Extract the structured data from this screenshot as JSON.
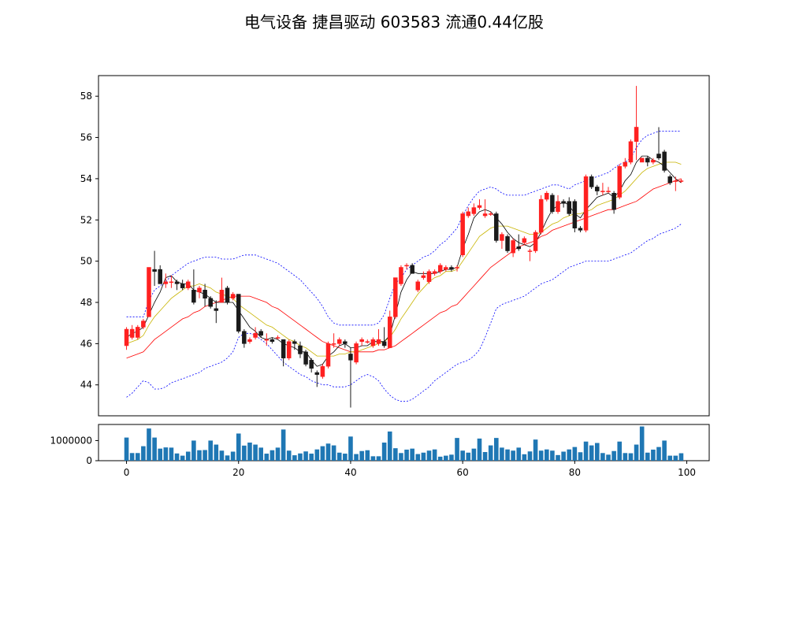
{
  "chart_data": {
    "type": "candlestick",
    "title": "电气设备 捷昌驱动 603583 流通0.44亿股",
    "price_ylim": [
      42.5,
      59.0
    ],
    "price_yticks": [
      "44",
      "46",
      "48",
      "50",
      "52",
      "54",
      "56",
      "58"
    ],
    "volume_ylim": [
      0,
      1800000
    ],
    "volume_yticks": [
      "0",
      "1000000"
    ],
    "xlim": [
      -5,
      104
    ],
    "xticks": [
      "0",
      "20",
      "40",
      "60",
      "80",
      "100"
    ],
    "colors": {
      "up": "#ff2020",
      "down": "#1a1a1a",
      "ma_short": "#000000",
      "ma_mid": "#c8b400",
      "ma_long": "#ff0000",
      "band": "#0000ff",
      "volume": "#1f77b4"
    },
    "ohlc": [
      [
        45.9,
        46.7,
        46.8,
        45.7
      ],
      [
        46.3,
        46.7,
        46.9,
        46.2
      ],
      [
        46.3,
        46.8,
        46.9,
        46.2
      ],
      [
        46.8,
        47.1,
        47.2,
        46.7
      ],
      [
        47.3,
        49.7,
        49.7,
        47.3
      ],
      [
        49.6,
        49.5,
        50.5,
        48.8
      ],
      [
        49.6,
        48.9,
        49.8,
        48.9
      ],
      [
        48.9,
        49.0,
        49.4,
        48.7
      ],
      [
        49.0,
        49.0,
        49.3,
        48.7
      ],
      [
        49.0,
        48.9,
        49.1,
        48.6
      ],
      [
        48.9,
        48.7,
        49.1,
        48.6
      ],
      [
        48.7,
        49.0,
        49.1,
        48.6
      ],
      [
        48.6,
        48.0,
        49.6,
        47.9
      ],
      [
        48.5,
        48.7,
        48.8,
        48.2
      ],
      [
        48.6,
        48.2,
        48.9,
        47.8
      ],
      [
        48.2,
        47.8,
        48.3,
        47.7
      ],
      [
        47.7,
        47.6,
        48.1,
        47.0
      ],
      [
        48.0,
        48.6,
        49.2,
        48.0
      ],
      [
        48.7,
        48.0,
        48.8,
        47.9
      ],
      [
        48.2,
        48.4,
        48.5,
        48.1
      ],
      [
        48.4,
        46.6,
        48.4,
        46.5
      ],
      [
        46.6,
        46.0,
        46.7,
        45.8
      ],
      [
        46.1,
        46.2,
        46.3,
        46.0
      ],
      [
        46.3,
        46.5,
        46.8,
        46.2
      ],
      [
        46.6,
        46.4,
        46.7,
        46.3
      ],
      [
        46.2,
        46.2,
        46.5,
        45.9
      ],
      [
        46.2,
        46.1,
        46.3,
        46.0
      ],
      [
        46.3,
        46.3,
        46.4,
        46.2
      ],
      [
        46.2,
        45.3,
        46.2,
        44.9
      ],
      [
        45.3,
        46.1,
        46.2,
        45.2
      ],
      [
        46.1,
        46.0,
        46.2,
        45.7
      ],
      [
        45.9,
        45.5,
        46.1,
        45.3
      ],
      [
        45.6,
        45.0,
        45.7,
        44.9
      ],
      [
        45.2,
        44.8,
        45.3,
        44.6
      ],
      [
        44.6,
        44.5,
        44.7,
        43.9
      ],
      [
        44.4,
        44.9,
        45.0,
        44.3
      ],
      [
        44.9,
        46.0,
        46.1,
        44.8
      ],
      [
        46.0,
        46.0,
        46.5,
        45.8
      ],
      [
        46.0,
        46.2,
        46.3,
        45.9
      ],
      [
        46.1,
        46.0,
        46.2,
        45.8
      ],
      [
        45.5,
        45.2,
        45.8,
        42.9
      ],
      [
        45.1,
        46.0,
        46.1,
        45.0
      ],
      [
        46.1,
        46.2,
        46.3,
        45.9
      ],
      [
        46.1,
        46.1,
        46.2,
        46.0
      ],
      [
        45.9,
        46.2,
        46.3,
        45.8
      ],
      [
        46.0,
        46.2,
        46.7,
        45.9
      ],
      [
        46.1,
        45.9,
        46.8,
        45.8
      ],
      [
        45.8,
        47.3,
        47.6,
        45.8
      ],
      [
        47.3,
        49.2,
        49.2,
        47.2
      ],
      [
        48.9,
        49.7,
        49.8,
        48.8
      ],
      [
        49.8,
        49.8,
        49.9,
        49.6
      ],
      [
        49.8,
        49.4,
        49.9,
        49.4
      ],
      [
        48.6,
        49.0,
        49.1,
        48.5
      ],
      [
        49.2,
        49.3,
        49.5,
        49.1
      ],
      [
        49.0,
        49.5,
        49.6,
        48.9
      ],
      [
        49.4,
        49.5,
        49.6,
        49.3
      ],
      [
        49.5,
        49.8,
        49.9,
        49.4
      ],
      [
        49.6,
        49.7,
        49.8,
        49.5
      ],
      [
        49.7,
        49.6,
        49.8,
        49.5
      ],
      [
        49.7,
        49.7,
        49.8,
        49.5
      ],
      [
        50.3,
        52.3,
        52.4,
        50.2
      ],
      [
        52.2,
        52.4,
        52.6,
        52.1
      ],
      [
        52.3,
        52.6,
        52.8,
        52.2
      ],
      [
        52.6,
        52.7,
        53.0,
        52.5
      ],
      [
        52.2,
        52.3,
        53.0,
        52.1
      ],
      [
        52.3,
        52.3,
        52.4,
        52.2
      ],
      [
        52.3,
        51.0,
        52.4,
        50.9
      ],
      [
        51.0,
        51.3,
        51.4,
        50.6
      ],
      [
        51.2,
        50.5,
        51.3,
        50.4
      ],
      [
        50.4,
        51.0,
        51.1,
        50.2
      ],
      [
        50.7,
        50.6,
        51.3,
        50.5
      ],
      [
        50.9,
        51.1,
        51.2,
        50.8
      ],
      [
        50.5,
        50.5,
        50.6,
        50.0
      ],
      [
        50.5,
        51.4,
        51.5,
        50.4
      ],
      [
        51.4,
        53.0,
        53.2,
        51.3
      ],
      [
        53.0,
        53.3,
        53.4,
        52.9
      ],
      [
        53.2,
        52.4,
        53.3,
        52.3
      ],
      [
        52.4,
        52.9,
        53.2,
        52.3
      ],
      [
        52.9,
        52.8,
        53.0,
        52.6
      ],
      [
        52.9,
        52.3,
        53.1,
        52.2
      ],
      [
        52.9,
        51.6,
        53.0,
        51.4
      ],
      [
        51.6,
        51.5,
        51.7,
        51.4
      ],
      [
        51.5,
        54.1,
        54.2,
        51.4
      ],
      [
        54.1,
        53.6,
        54.2,
        53.5
      ],
      [
        53.6,
        53.4,
        53.7,
        53.2
      ],
      [
        53.4,
        53.4,
        53.8,
        53.2
      ],
      [
        53.4,
        53.4,
        53.6,
        53.3
      ],
      [
        53.3,
        52.5,
        53.4,
        52.3
      ],
      [
        53.1,
        54.6,
        54.7,
        53.0
      ],
      [
        54.6,
        54.8,
        55.0,
        54.5
      ],
      [
        54.8,
        55.8,
        55.9,
        54.7
      ],
      [
        55.8,
        56.5,
        58.5,
        54.9
      ],
      [
        54.8,
        55.0,
        55.0,
        54.8
      ],
      [
        55.0,
        54.8,
        55.1,
        54.6
      ],
      [
        54.8,
        54.9,
        55.0,
        54.7
      ],
      [
        55.2,
        55.0,
        56.5,
        54.9
      ],
      [
        55.3,
        54.4,
        55.4,
        54.3
      ],
      [
        54.1,
        53.8,
        54.2,
        53.7
      ],
      [
        53.9,
        53.9,
        54.1,
        53.4
      ],
      [
        53.9,
        53.9,
        54.0,
        53.8
      ]
    ],
    "ma_short": [
      46.3,
      46.5,
      46.6,
      46.8,
      47.4,
      48.0,
      48.5,
      49.2,
      49.3,
      49.0,
      48.9,
      48.9,
      48.6,
      48.5,
      48.4,
      48.2,
      48.0,
      48.0,
      48.0,
      48.0,
      47.6,
      47.2,
      46.8,
      46.6,
      46.3,
      46.2,
      46.3,
      46.2,
      46.0,
      45.9,
      45.8,
      45.6,
      45.6,
      45.2,
      44.9,
      45.0,
      45.4,
      45.6,
      45.9,
      46.0,
      45.8,
      45.8,
      45.9,
      45.9,
      46.1,
      46.1,
      46.1,
      46.4,
      47.4,
      48.5,
      49.1,
      49.5,
      49.4,
      49.4,
      49.4,
      49.4,
      49.5,
      49.6,
      49.6,
      49.7,
      50.6,
      51.3,
      52.1,
      52.4,
      52.5,
      52.4,
      52.1,
      51.8,
      51.4,
      51.1,
      50.9,
      50.8,
      50.7,
      50.9,
      51.4,
      52.0,
      52.5,
      52.7,
      52.9,
      52.7,
      52.3,
      52.1,
      52.5,
      52.8,
      53.1,
      53.2,
      53.3,
      53.1,
      53.4,
      53.9,
      54.2,
      54.8,
      55.1,
      55.1,
      54.9,
      54.8,
      54.6,
      54.3,
      54.0,
      53.8
    ],
    "ma_mid": [
      46.0,
      46.1,
      46.2,
      46.4,
      46.9,
      47.3,
      47.6,
      47.9,
      48.2,
      48.4,
      48.6,
      48.8,
      48.8,
      48.9,
      48.8,
      48.7,
      48.5,
      48.4,
      48.3,
      48.2,
      47.9,
      47.7,
      47.5,
      47.3,
      47.1,
      46.9,
      46.8,
      46.6,
      46.4,
      46.2,
      46.1,
      45.9,
      45.8,
      45.6,
      45.4,
      45.4,
      45.4,
      45.4,
      45.5,
      45.5,
      45.6,
      45.6,
      45.7,
      45.8,
      45.9,
      46.0,
      46.1,
      46.3,
      46.7,
      47.2,
      47.6,
      48.0,
      48.4,
      48.7,
      49.0,
      49.2,
      49.3,
      49.5,
      49.5,
      49.6,
      50.0,
      50.4,
      50.8,
      51.2,
      51.4,
      51.6,
      51.7,
      51.7,
      51.7,
      51.6,
      51.5,
      51.4,
      51.3,
      51.3,
      51.4,
      51.6,
      51.8,
      51.9,
      52.1,
      52.2,
      52.3,
      52.3,
      52.4,
      52.5,
      52.7,
      52.8,
      52.9,
      53.0,
      53.2,
      53.4,
      53.7,
      54.0,
      54.3,
      54.5,
      54.6,
      54.7,
      54.8,
      54.8,
      54.8,
      54.7
    ],
    "ma_long": [
      45.3,
      45.4,
      45.5,
      45.6,
      45.9,
      46.2,
      46.4,
      46.6,
      46.8,
      47.0,
      47.2,
      47.3,
      47.5,
      47.6,
      47.8,
      47.9,
      48.0,
      48.1,
      48.2,
      48.3,
      48.3,
      48.3,
      48.3,
      48.2,
      48.1,
      48.0,
      47.8,
      47.7,
      47.5,
      47.3,
      47.1,
      46.9,
      46.7,
      46.5,
      46.3,
      46.1,
      46.0,
      45.9,
      45.8,
      45.7,
      45.6,
      45.6,
      45.6,
      45.6,
      45.6,
      45.7,
      45.7,
      45.8,
      45.9,
      46.1,
      46.3,
      46.5,
      46.7,
      46.9,
      47.1,
      47.3,
      47.5,
      47.6,
      47.8,
      47.9,
      48.2,
      48.5,
      48.8,
      49.1,
      49.4,
      49.7,
      49.9,
      50.1,
      50.3,
      50.5,
      50.7,
      50.8,
      50.9,
      51.0,
      51.2,
      51.3,
      51.5,
      51.6,
      51.7,
      51.8,
      51.9,
      52.0,
      52.1,
      52.2,
      52.3,
      52.4,
      52.5,
      52.5,
      52.6,
      52.7,
      52.8,
      52.9,
      53.1,
      53.3,
      53.5,
      53.6,
      53.7,
      53.8,
      53.9,
      54.0
    ],
    "band_upper": [
      47.3,
      47.3,
      47.3,
      47.3,
      48.1,
      48.6,
      48.8,
      49.0,
      49.3,
      49.5,
      49.7,
      49.9,
      50.0,
      50.1,
      50.2,
      50.2,
      50.2,
      50.1,
      50.1,
      50.1,
      50.2,
      50.3,
      50.3,
      50.3,
      50.2,
      50.1,
      50.0,
      49.9,
      49.7,
      49.5,
      49.3,
      49.1,
      48.8,
      48.5,
      48.2,
      47.8,
      47.3,
      47.0,
      46.9,
      46.9,
      46.9,
      46.9,
      46.9,
      46.9,
      46.9,
      47.0,
      47.4,
      48.2,
      48.9,
      49.2,
      49.6,
      49.8,
      50.0,
      50.2,
      50.3,
      50.5,
      50.8,
      51.0,
      51.3,
      51.6,
      52.2,
      52.7,
      53.1,
      53.4,
      53.5,
      53.6,
      53.5,
      53.3,
      53.2,
      53.2,
      53.2,
      53.2,
      53.3,
      53.4,
      53.5,
      53.6,
      53.7,
      53.7,
      53.6,
      53.5,
      53.7,
      53.8,
      53.9,
      54.0,
      54.1,
      54.2,
      54.3,
      54.5,
      54.7,
      54.8,
      55.0,
      55.5,
      55.9,
      56.1,
      56.2,
      56.3,
      56.3,
      56.3,
      56.3,
      56.3
    ],
    "band_lower": [
      43.4,
      43.6,
      43.9,
      44.2,
      44.1,
      43.8,
      43.8,
      43.9,
      44.1,
      44.2,
      44.3,
      44.4,
      44.5,
      44.6,
      44.8,
      44.9,
      45.0,
      45.1,
      45.3,
      45.6,
      46.3,
      46.5,
      46.5,
      46.4,
      46.2,
      46.0,
      45.7,
      45.4,
      45.1,
      44.9,
      44.7,
      44.5,
      44.4,
      44.2,
      44.1,
      44.0,
      44.0,
      43.9,
      43.9,
      43.9,
      44.0,
      44.2,
      44.4,
      44.5,
      44.4,
      44.2,
      43.8,
      43.5,
      43.3,
      43.2,
      43.2,
      43.3,
      43.5,
      43.7,
      43.9,
      44.2,
      44.4,
      44.6,
      44.8,
      45.0,
      45.1,
      45.2,
      45.4,
      45.7,
      46.3,
      47.0,
      47.7,
      47.9,
      48.0,
      48.1,
      48.2,
      48.3,
      48.5,
      48.7,
      48.9,
      49.0,
      49.1,
      49.3,
      49.5,
      49.7,
      49.8,
      49.9,
      50.0,
      50.0,
      50.0,
      50.0,
      50.0,
      50.1,
      50.2,
      50.3,
      50.4,
      50.6,
      50.8,
      51.0,
      51.1,
      51.3,
      51.4,
      51.5,
      51.6,
      51.8
    ],
    "volume": [
      1150000,
      380000,
      380000,
      720000,
      1600000,
      1150000,
      600000,
      660000,
      650000,
      360000,
      250000,
      450000,
      1000000,
      520000,
      530000,
      1000000,
      800000,
      500000,
      260000,
      450000,
      1350000,
      750000,
      900000,
      800000,
      650000,
      350000,
      520000,
      650000,
      1550000,
      500000,
      270000,
      360000,
      460000,
      350000,
      560000,
      720000,
      850000,
      760000,
      400000,
      350000,
      1200000,
      330000,
      480000,
      520000,
      220000,
      220000,
      900000,
      1450000,
      620000,
      380000,
      550000,
      600000,
      330000,
      400000,
      500000,
      560000,
      200000,
      250000,
      300000,
      1130000,
      500000,
      400000,
      600000,
      1100000,
      430000,
      760000,
      1130000,
      650000,
      560000,
      500000,
      650000,
      320000,
      460000,
      1050000,
      500000,
      560000,
      500000,
      280000,
      450000,
      560000,
      680000,
      420000,
      950000,
      760000,
      880000,
      380000,
      300000,
      480000,
      950000,
      380000,
      370000,
      800000,
      1700000,
      400000,
      550000,
      680000,
      1000000,
      250000,
      250000,
      370000
    ]
  }
}
